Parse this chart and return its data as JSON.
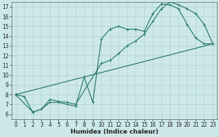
{
  "xlabel": "Humidex (Indice chaleur)",
  "xlim": [
    -0.5,
    23.5
  ],
  "ylim": [
    5.5,
    17.5
  ],
  "xticks": [
    0,
    1,
    2,
    3,
    4,
    5,
    6,
    7,
    8,
    9,
    10,
    11,
    12,
    13,
    14,
    15,
    16,
    17,
    18,
    19,
    20,
    21,
    22,
    23
  ],
  "yticks": [
    6,
    7,
    8,
    9,
    10,
    11,
    12,
    13,
    14,
    15,
    16,
    17
  ],
  "bg_color": "#cde8e8",
  "grid_color": "#b0d0d0",
  "line_color": "#2a7a6a",
  "line1_x": [
    0,
    1,
    2,
    3,
    4,
    5,
    6,
    7,
    8,
    9,
    10,
    11,
    12,
    13,
    14,
    15,
    16,
    17,
    18,
    19,
    20,
    21,
    22,
    23
  ],
  "line1_y": [
    8.0,
    7.8,
    6.2,
    6.5,
    7.2,
    7.2,
    7.0,
    6.8,
    9.8,
    7.2,
    13.7,
    14.7,
    15.0,
    14.7,
    14.7,
    14.5,
    16.3,
    17.3,
    17.2,
    16.8,
    15.2,
    13.8,
    13.2,
    13.2
  ],
  "line2_x": [
    0,
    2,
    3,
    4,
    5,
    6,
    7,
    10,
    11,
    12,
    13,
    14,
    15,
    16,
    17,
    18,
    19,
    20,
    21,
    22,
    23
  ],
  "line2_y": [
    8.0,
    6.2,
    6.5,
    7.5,
    7.3,
    7.2,
    7.0,
    11.2,
    11.5,
    12.2,
    13.0,
    13.5,
    14.2,
    15.5,
    16.8,
    17.5,
    17.2,
    16.8,
    16.3,
    15.2,
    13.2
  ],
  "line3_x": [
    0,
    23
  ],
  "line3_y": [
    8.0,
    13.2
  ],
  "marker": "+",
  "marker_size": 3,
  "line_width": 0.9,
  "font_size_tick": 5.5,
  "font_size_xlabel": 6.5
}
